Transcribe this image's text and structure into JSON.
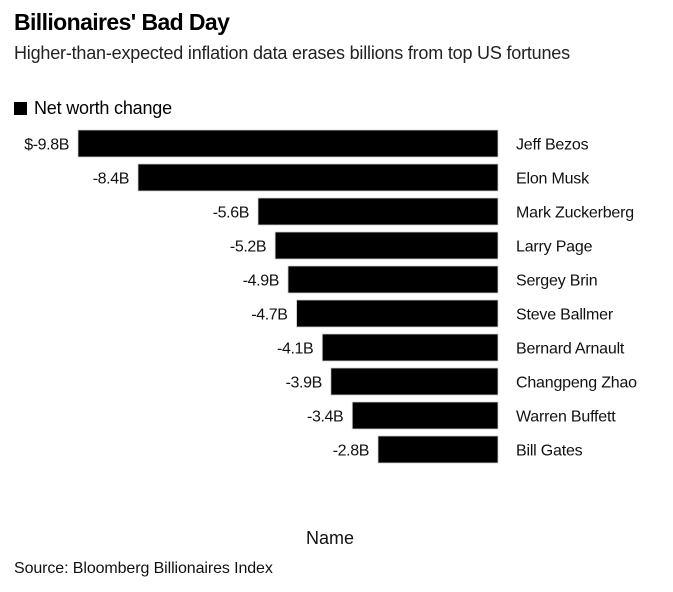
{
  "chart_data": {
    "type": "bar",
    "orientation": "horizontal",
    "title": "Billionaires' Bad Day",
    "subtitle": "Higher-than-expected inflation data erases billions from top US fortunes",
    "xlabel": "Name",
    "ylabel": "",
    "source": "Source: Bloomberg Billionaires Index",
    "legend": {
      "entries": [
        "Net worth change"
      ],
      "placement": "top-left"
    },
    "grid": false,
    "value_range": [
      -9.8,
      0
    ],
    "bar_color": "#000000",
    "categories": [
      "Jeff Bezos",
      "Elon Musk",
      "Mark Zuckerberg",
      "Larry Page",
      "Sergey Brin",
      "Steve Ballmer",
      "Bernard Arnault",
      "Changpeng Zhao",
      "Warren Buffett",
      "Bill Gates"
    ],
    "series": [
      {
        "name": "Net worth change",
        "values": [
          -9.8,
          -8.4,
          -5.6,
          -5.2,
          -4.9,
          -4.7,
          -4.1,
          -3.9,
          -3.4,
          -2.8
        ]
      }
    ],
    "data_labels": [
      "$-9.8B",
      "-8.4B",
      "-5.6B",
      "-5.2B",
      "-4.9B",
      "-4.7B",
      "-4.1B",
      "-3.9B",
      "-3.4B",
      "-2.8B"
    ]
  }
}
